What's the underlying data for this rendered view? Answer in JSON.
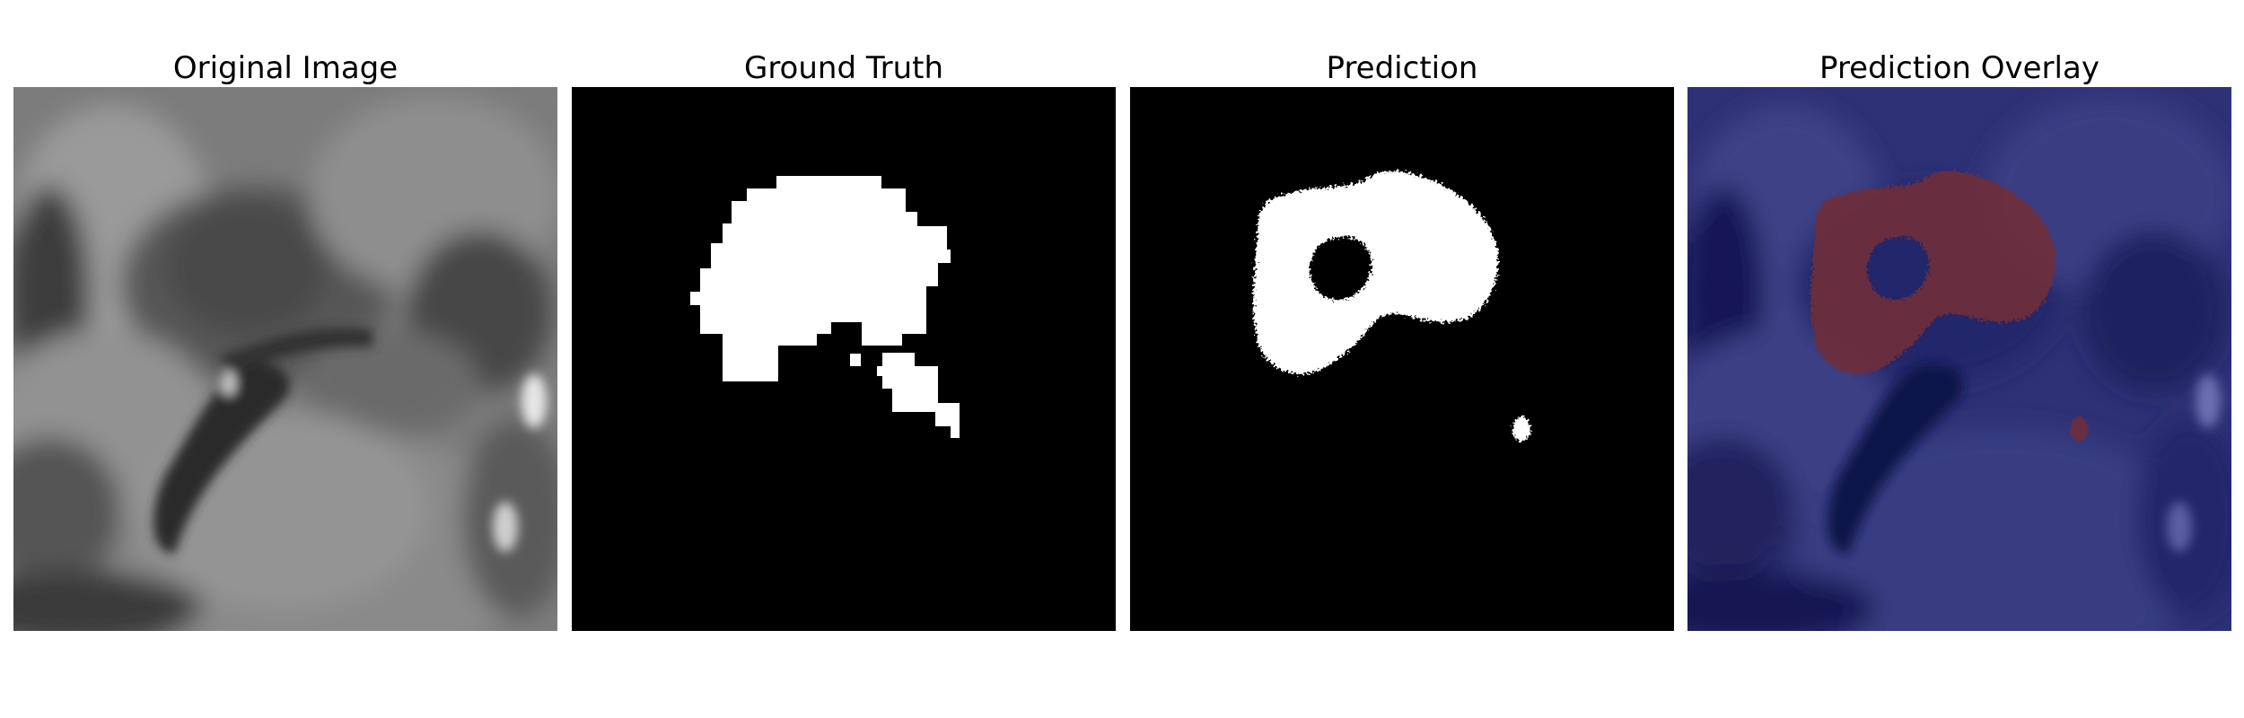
{
  "panels": [
    {
      "title": "Original Image"
    },
    {
      "title": "Ground Truth"
    },
    {
      "title": "Prediction"
    },
    {
      "title": "Prediction Overlay"
    }
  ],
  "colors": {
    "background": "#ffffff",
    "mask_background": "#000000",
    "mask_foreground": "#ffffff",
    "overlay_base": "#1a1f6e",
    "overlay_prediction": "#7a2a2a"
  }
}
